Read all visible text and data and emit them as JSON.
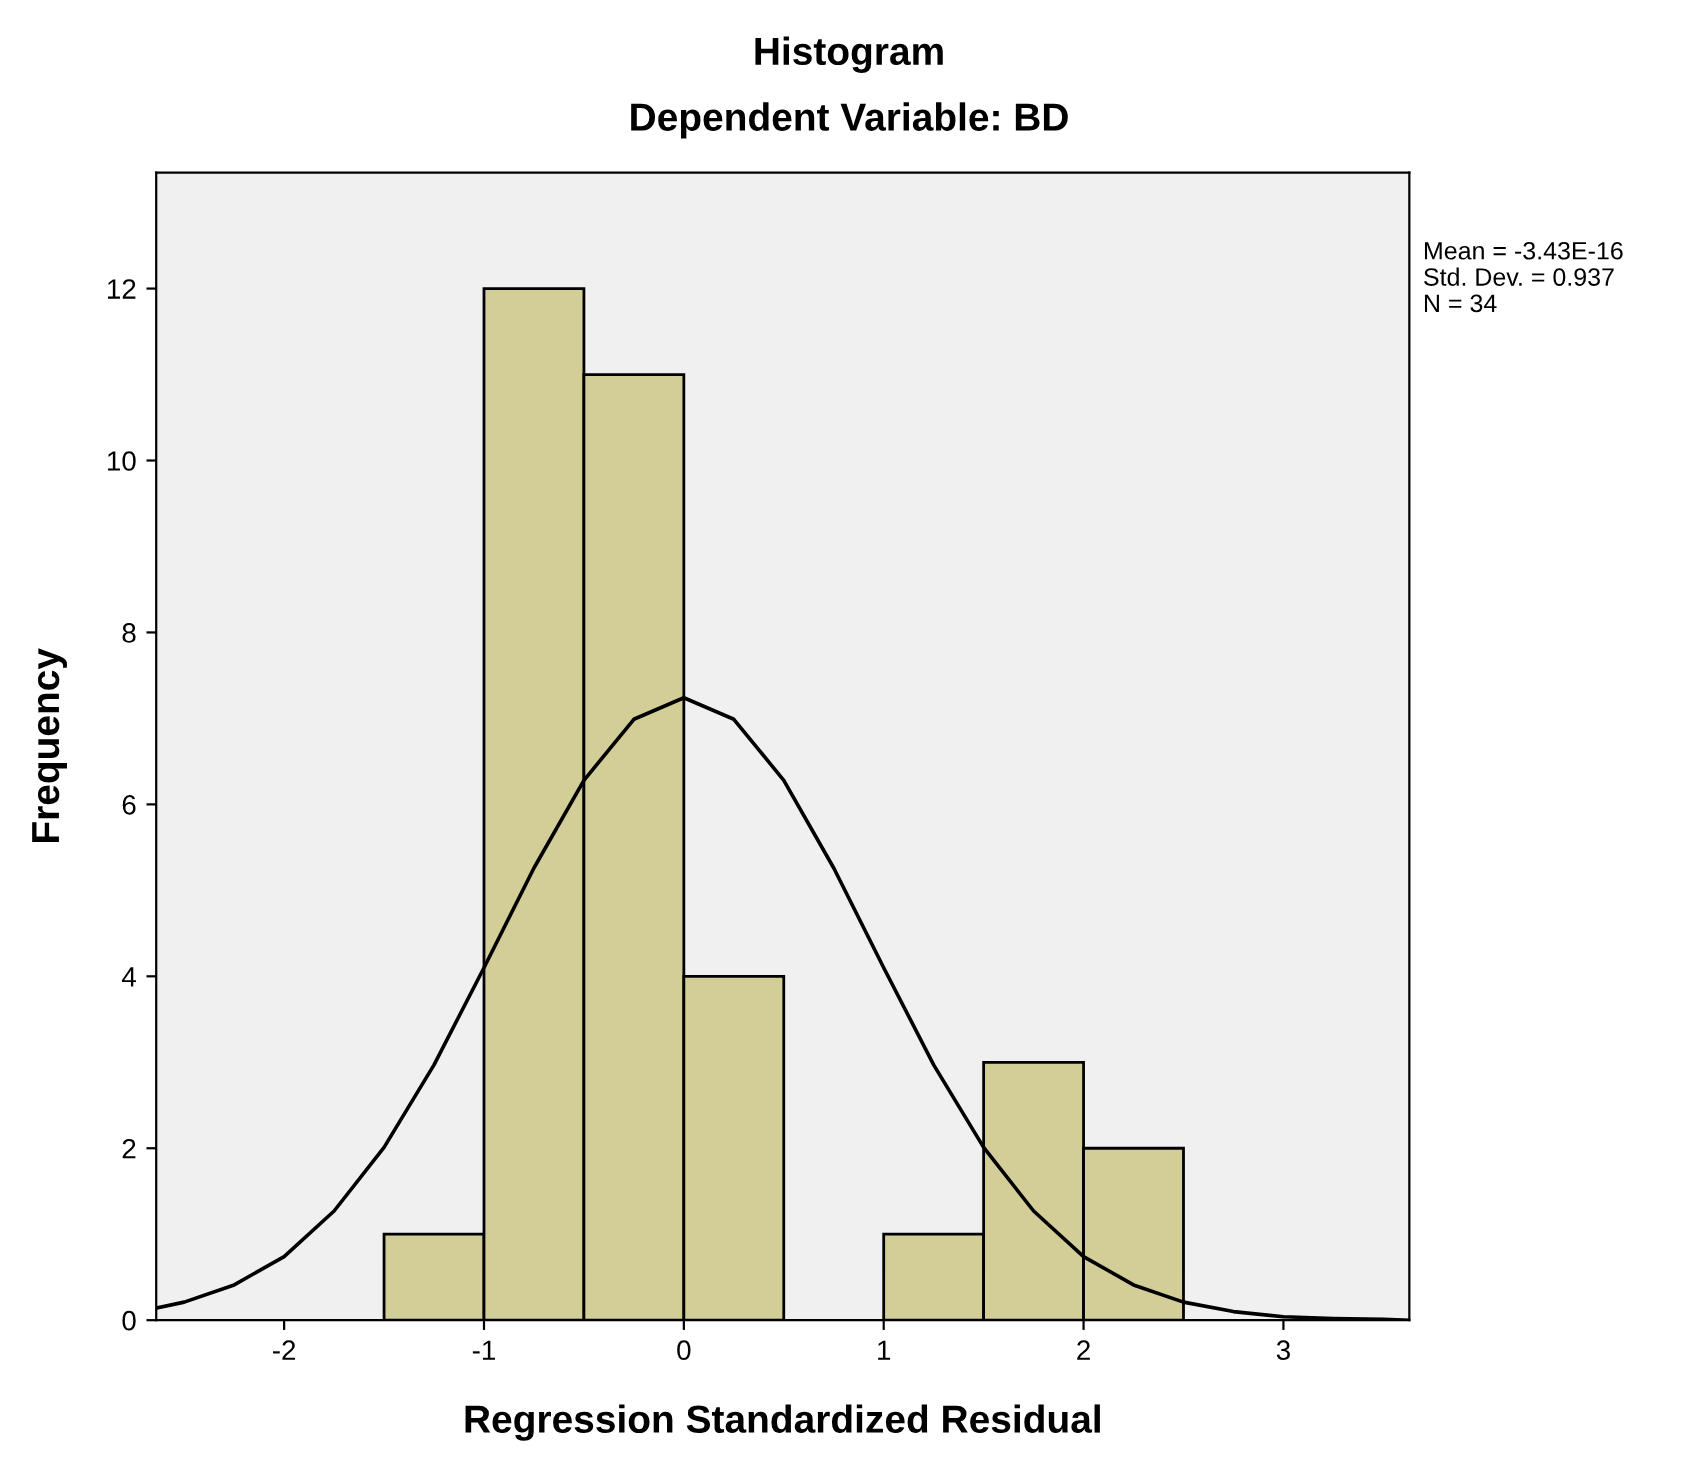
{
  "chart_data": {
    "type": "histogram",
    "title": "Histogram",
    "subtitle": "Dependent Variable: BD",
    "xlabel": "Regression Standardized Residual",
    "ylabel": "Frequency",
    "annotations": [
      "Mean = -3.43E-16",
      "Std. Dev. = 0.937",
      "N = 34"
    ],
    "series": [
      {
        "color": "#d3ce97",
        "bins": [
          -1.5,
          -1.0,
          -0.5,
          0.0,
          0.5,
          1.0,
          1.5,
          2.0,
          2.5
        ],
        "values": [
          1,
          12,
          11,
          4,
          0,
          1,
          3,
          2
        ]
      },
      {
        "type": "line",
        "color": "#000000",
        "x": [
          -2.64,
          -2.5,
          -2.25,
          -2.0,
          -1.75,
          -1.5,
          -1.25,
          -1.0,
          -0.75,
          -0.5,
          -0.25,
          0.0,
          0.25,
          0.5,
          0.75,
          1.0,
          1.25,
          1.5,
          1.75,
          2.0,
          2.25,
          2.5,
          2.75,
          3.0,
          3.25,
          3.5,
          3.63
        ],
        "values": [
          0.14,
          0.21,
          0.41,
          0.74,
          1.27,
          2.01,
          2.97,
          4.1,
          5.26,
          6.28,
          6.99,
          7.24,
          6.99,
          6.28,
          5.26,
          4.1,
          2.97,
          2.01,
          1.27,
          0.74,
          0.41,
          0.21,
          0.1,
          0.04,
          0.02,
          0.01,
          0.0
        ]
      }
    ],
    "xlim": [
      -2.64,
      3.63
    ],
    "ylim": [
      0,
      13.35
    ],
    "xticks": [
      -2,
      -1,
      0,
      1,
      2,
      3
    ],
    "yticks": [
      0,
      2,
      4,
      6,
      8,
      10,
      12
    ],
    "grid": false,
    "legend": false
  }
}
